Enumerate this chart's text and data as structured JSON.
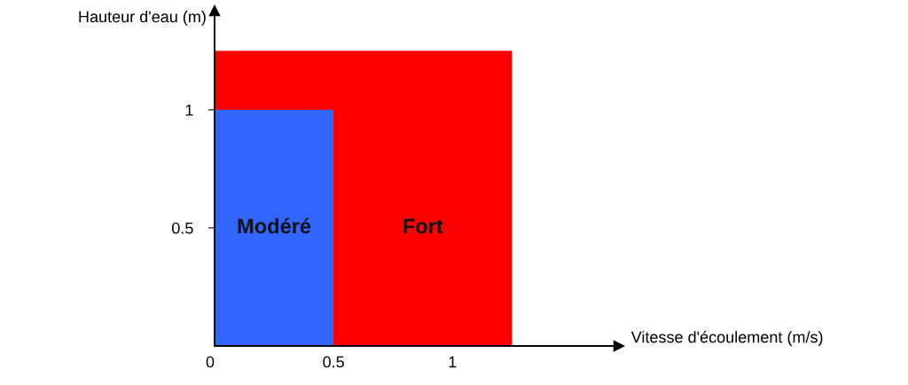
{
  "chart_data": {
    "type": "area",
    "xlabel": "Vitesse d'écoulement (m/s)",
    "ylabel": "Hauteur d'eau (m)",
    "xlim": [
      0,
      1.7
    ],
    "ylim": [
      0,
      1.42
    ],
    "xticks": [
      {
        "value": 0,
        "label": "0"
      },
      0.5,
      1
    ],
    "yticks": [
      0.5,
      1
    ],
    "grid": false,
    "legend": false,
    "series": [
      {
        "name": "Modéré",
        "color": "#3366ff",
        "x": [
          0,
          0.5
        ],
        "values": [
          1,
          1
        ]
      },
      {
        "name": "Fort",
        "color": "#ff0000",
        "x": [
          0,
          1.25
        ],
        "values": [
          1.25,
          1.25
        ]
      }
    ]
  }
}
